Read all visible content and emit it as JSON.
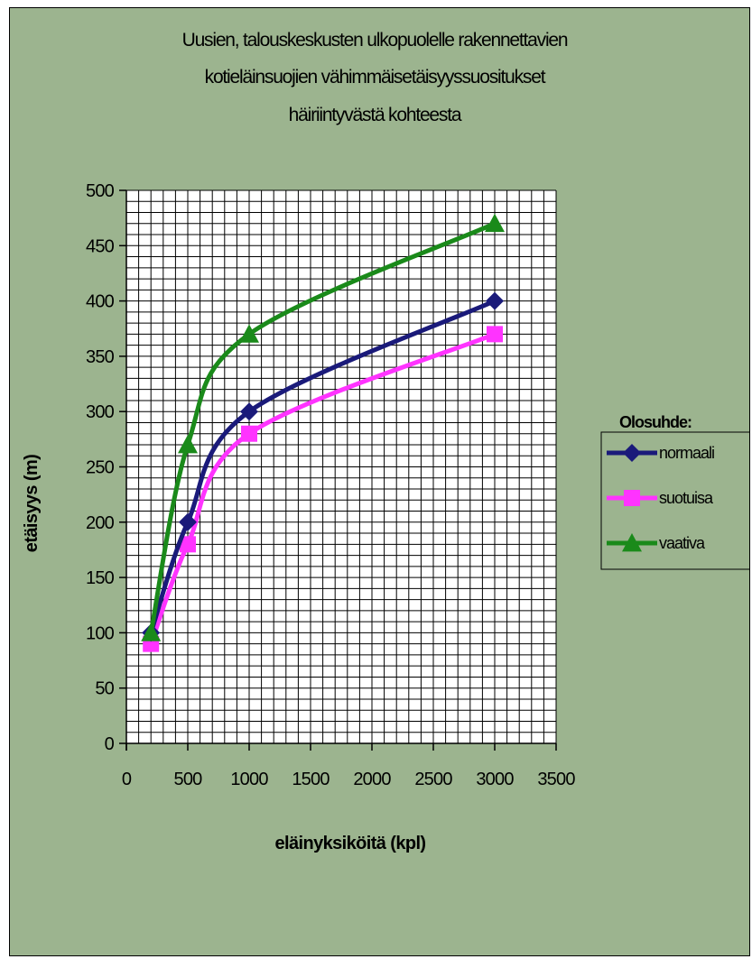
{
  "colors": {
    "background": "#9cb48f",
    "plot_background": "#ffffff",
    "gridline": "#000000"
  },
  "chart_data": {
    "type": "line",
    "title_lines": [
      "Uusien, talouskeskusten ulkopuolelle rakennettavien",
      "kotieläinsuojien vähimmäisetäisyyssuositukset",
      "häiriintyvästä kohteesta"
    ],
    "xlabel": "eläinyksiköitä (kpl)",
    "ylabel": "etäisyys (m)",
    "xlim": [
      0,
      3500
    ],
    "ylim": [
      0,
      500
    ],
    "x_ticks": [
      0,
      500,
      1000,
      1500,
      2000,
      2500,
      3000,
      3500
    ],
    "y_ticks": [
      0,
      50,
      100,
      150,
      200,
      250,
      300,
      350,
      400,
      450,
      500
    ],
    "grid": true,
    "minor_x_step": 100,
    "minor_y_step": 10,
    "legend_title": "Olosuhde:",
    "legend_position": "right",
    "series": [
      {
        "name": "normaali",
        "color": "#1a1a7a",
        "marker": "diamond",
        "x": [
          200,
          500,
          1000,
          3000
        ],
        "y": [
          100,
          200,
          300,
          400
        ]
      },
      {
        "name": "suotuisa",
        "color": "#ff33ff",
        "marker": "square",
        "x": [
          200,
          500,
          1000,
          3000
        ],
        "y": [
          90,
          180,
          280,
          370
        ]
      },
      {
        "name": "vaativa",
        "color": "#1a8a1a",
        "marker": "triangle",
        "x": [
          200,
          500,
          1000,
          3000
        ],
        "y": [
          100,
          270,
          370,
          470
        ]
      }
    ]
  }
}
